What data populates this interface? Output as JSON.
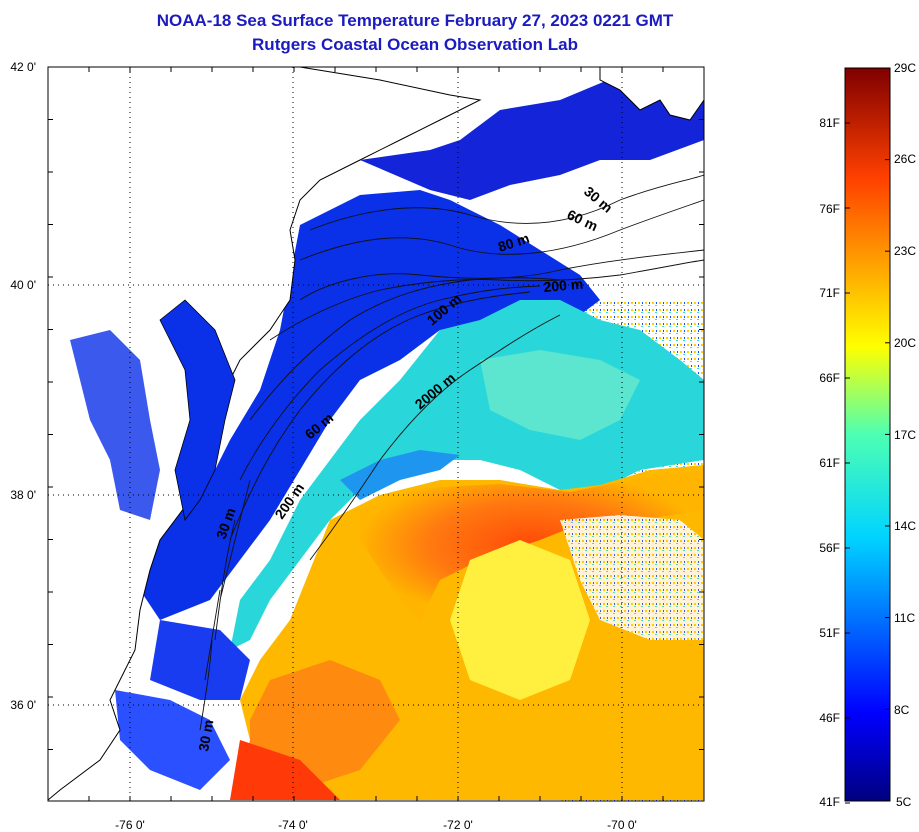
{
  "title": {
    "line1": "NOAA-18 Sea Surface Temperature February 27, 2023 0221 GMT",
    "line2": "Rutgers Coastal Ocean Observation Lab"
  },
  "map": {
    "lat_ticks": [
      "42 0'",
      "40 0'",
      "38 0'",
      "36 0'"
    ],
    "lon_ticks": [
      "-76 0'",
      "-74 0'",
      "-72 0'",
      "-70 0'"
    ],
    "contour_labels": [
      {
        "text": "30 m",
        "key": "c30a"
      },
      {
        "text": "60 m",
        "key": "c60a"
      },
      {
        "text": "80 m",
        "key": "c80a"
      },
      {
        "text": "200 m",
        "key": "c200a"
      },
      {
        "text": "100 m",
        "key": "c100a"
      },
      {
        "text": "2000 m",
        "key": "c2000"
      },
      {
        "text": "60 m",
        "key": "c60b"
      },
      {
        "text": "200 m",
        "key": "c200b"
      },
      {
        "text": "30 m",
        "key": "c30b"
      },
      {
        "text": "30 m",
        "key": "c30c"
      }
    ]
  },
  "colorbar": {
    "celsius": [
      "29C",
      "26C",
      "23C",
      "20C",
      "17C",
      "14C",
      "11C",
      "8C",
      "5C"
    ],
    "fahrenheit": [
      "81F",
      "76F",
      "71F",
      "66F",
      "61F",
      "56F",
      "51F",
      "46F",
      "41F"
    ],
    "range_c": [
      5,
      29
    ]
  },
  "colors": {
    "title": "#1b1bbf",
    "cold": "#0000a0",
    "cool": "#0a30e8",
    "mid": "#29d6d9",
    "warm": "#f5e400",
    "hot": "#ff3a08",
    "max": "#7f0000"
  }
}
